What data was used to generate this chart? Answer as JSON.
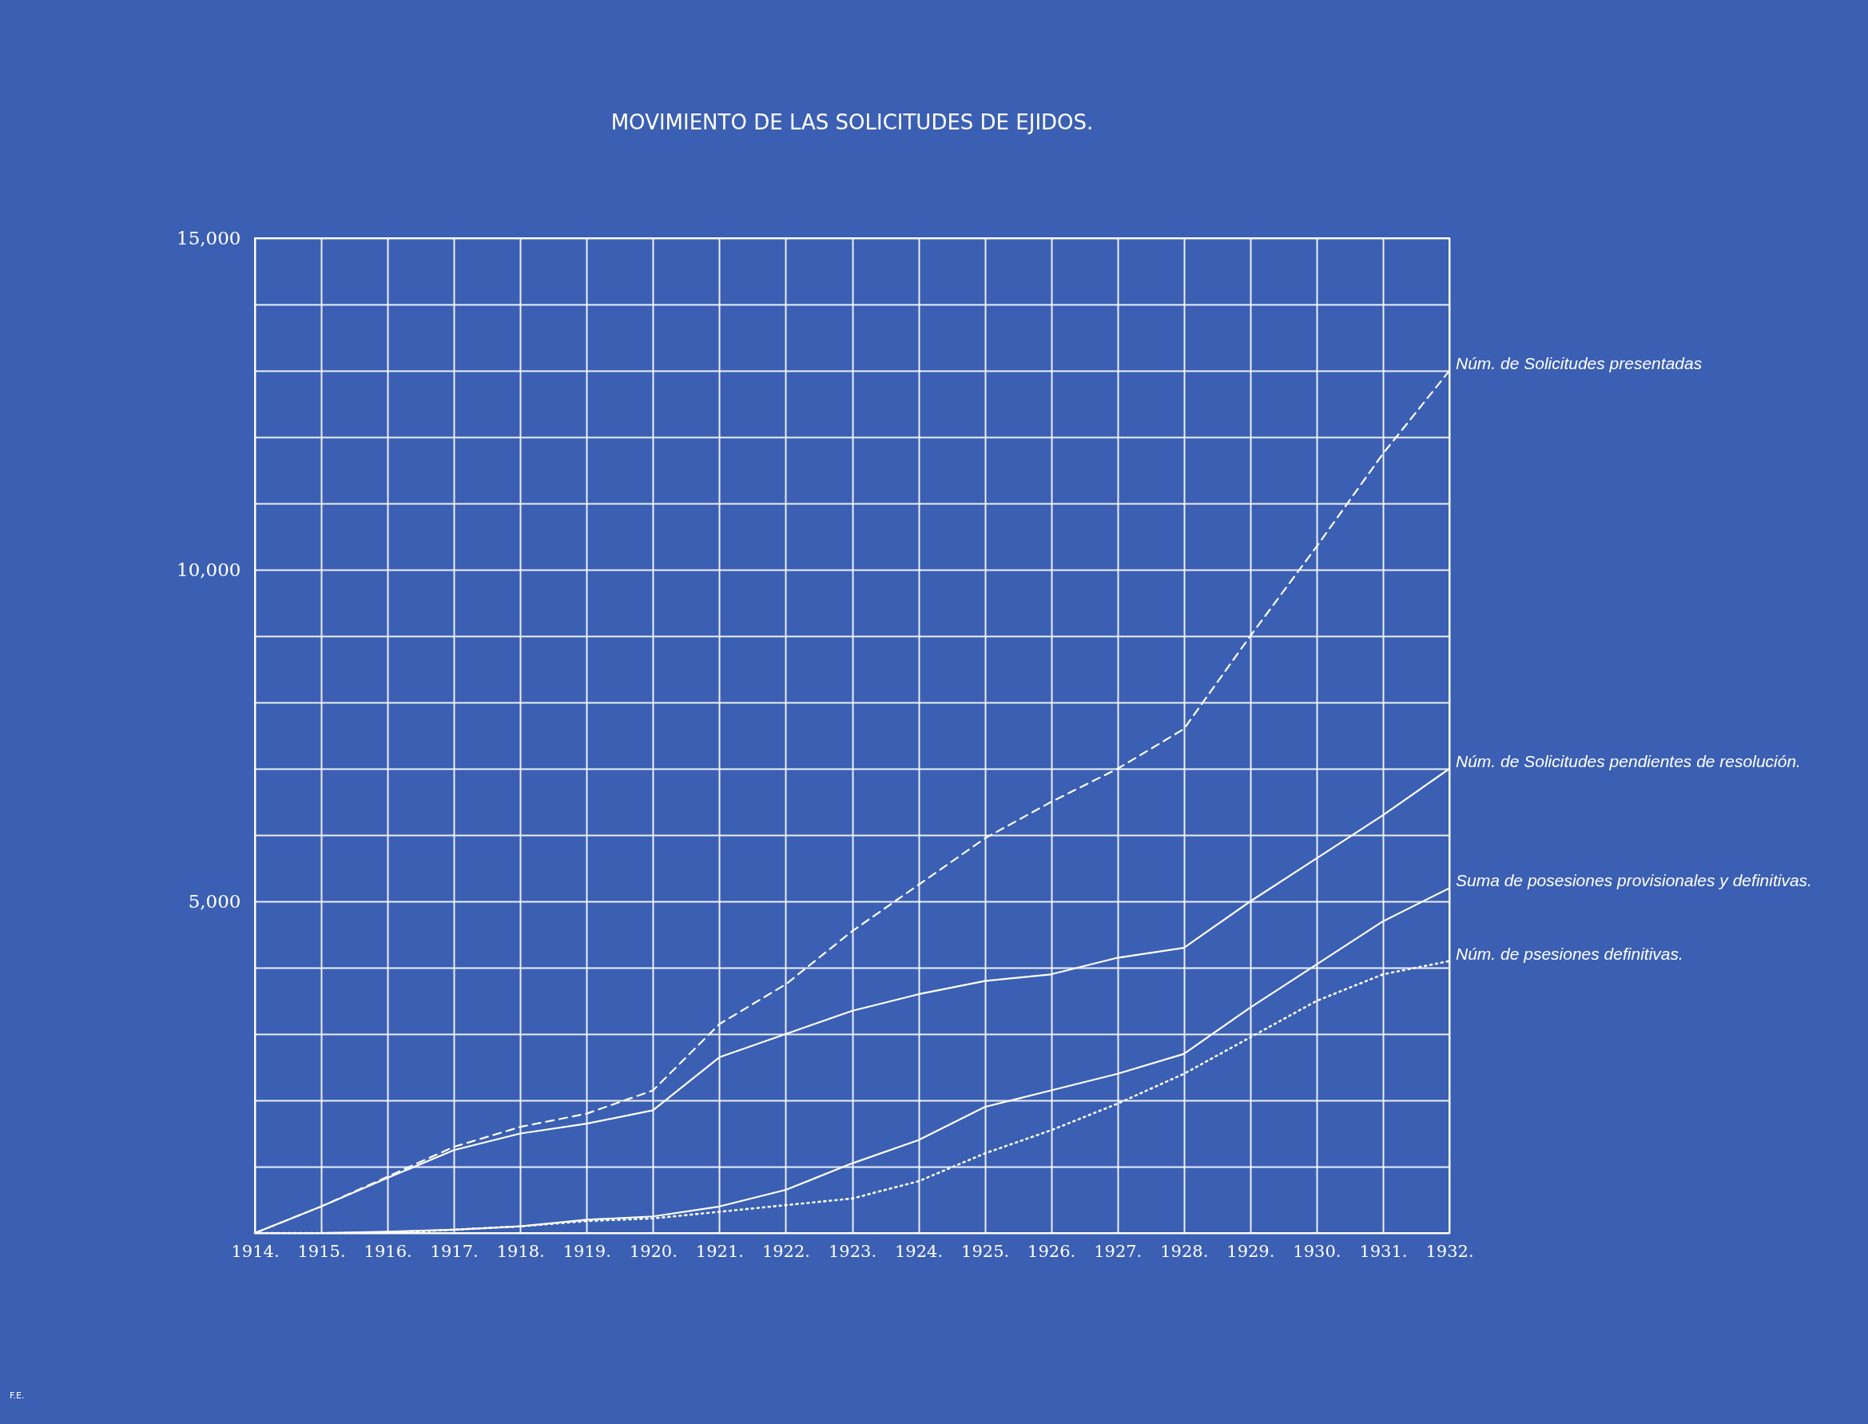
{
  "chart_data": {
    "type": "line",
    "title": "MOVIMIENTO DE LAS SOLICITUDES DE EJIDOS.",
    "x": [
      1914,
      1915,
      1916,
      1917,
      1918,
      1919,
      1920,
      1921,
      1922,
      1923,
      1924,
      1925,
      1926,
      1927,
      1928,
      1929,
      1930,
      1931,
      1932
    ],
    "xlim": [
      1914,
      1932
    ],
    "xticks": [
      {
        "value": 1914,
        "label": "1914."
      },
      {
        "value": 1915,
        "label": "1915."
      },
      {
        "value": 1916,
        "label": "1916."
      },
      {
        "value": 1917,
        "label": "1917."
      },
      {
        "value": 1918,
        "label": "1918."
      },
      {
        "value": 1919,
        "label": "1919."
      },
      {
        "value": 1920,
        "label": "1920."
      },
      {
        "value": 1921,
        "label": "1921."
      },
      {
        "value": 1922,
        "label": "1922."
      },
      {
        "value": 1923,
        "label": "1923."
      },
      {
        "value": 1924,
        "label": "1924."
      },
      {
        "value": 1925,
        "label": "1925."
      },
      {
        "value": 1926,
        "label": "1926."
      },
      {
        "value": 1927,
        "label": "1927."
      },
      {
        "value": 1928,
        "label": "1928."
      },
      {
        "value": 1929,
        "label": "1929."
      },
      {
        "value": 1930,
        "label": "1930."
      },
      {
        "value": 1931,
        "label": "1931."
      },
      {
        "value": 1932,
        "label": "1932."
      }
    ],
    "ylim": [
      0,
      15000
    ],
    "yticks": [
      {
        "value": 0,
        "label": null
      },
      {
        "value": 1000,
        "label": null
      },
      {
        "value": 2000,
        "label": null
      },
      {
        "value": 3000,
        "label": null
      },
      {
        "value": 4000,
        "label": null
      },
      {
        "value": 5000,
        "label": "5,000"
      },
      {
        "value": 6000,
        "label": null
      },
      {
        "value": 7000,
        "label": null
      },
      {
        "value": 8000,
        "label": null
      },
      {
        "value": 9000,
        "label": null
      },
      {
        "value": 10000,
        "label": "10,000"
      },
      {
        "value": 11000,
        "label": null
      },
      {
        "value": 12000,
        "label": null
      },
      {
        "value": 13000,
        "label": null
      },
      {
        "value": 14000,
        "label": null
      },
      {
        "value": 15000,
        "label": "15,000"
      }
    ],
    "grid": true,
    "marker": "none",
    "series": [
      {
        "name": "Núm. de Solicitudes presentadas",
        "color": "#ffffff",
        "line_style": "dashed",
        "values": [
          0,
          400,
          850,
          1300,
          1600,
          1800,
          2150,
          3150,
          3750,
          4550,
          5250,
          5950,
          6500,
          7000,
          7600,
          9000,
          10350,
          11750,
          13000
        ]
      },
      {
        "name": "Núm. de Solicitudes pendientes de resolución.",
        "color": "#ffffff",
        "line_style": "solid",
        "values": [
          0,
          400,
          830,
          1250,
          1500,
          1650,
          1850,
          2650,
          3000,
          3350,
          3600,
          3800,
          3900,
          4150,
          4300,
          5000,
          5650,
          6300,
          7000
        ]
      },
      {
        "name": "Suma de posesiones provisionales y definitivas.",
        "color": "#ffffff",
        "line_style": "solid",
        "values": [
          0,
          0,
          20,
          50,
          100,
          200,
          250,
          400,
          650,
          1050,
          1400,
          1900,
          2150,
          2400,
          2700,
          3400,
          4050,
          4700,
          5200
        ]
      },
      {
        "name": "Núm. de psesiones definitivas.",
        "color": "#ffffff",
        "line_style": "dotted",
        "values": [
          0,
          0,
          0,
          50,
          100,
          180,
          220,
          320,
          420,
          520,
          780,
          1200,
          1550,
          1950,
          2400,
          2950,
          3500,
          3900,
          4100
        ]
      }
    ],
    "annotations": [
      "F.E."
    ]
  }
}
